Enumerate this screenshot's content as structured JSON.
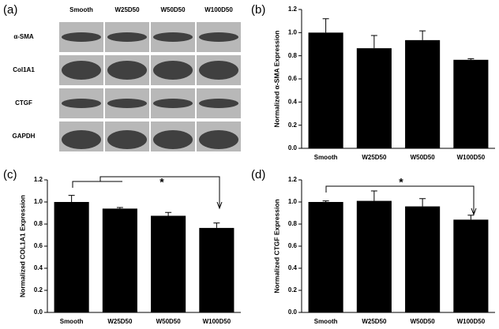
{
  "blot": {
    "label": "(a)",
    "columns": [
      "Smooth",
      "W25D50",
      "W50D50",
      "W100D50"
    ],
    "rows": [
      "α-SMA",
      "Col1A1",
      "CTGF",
      "GAPDH"
    ]
  },
  "chart_data": [
    {
      "type": "bar",
      "label": "(b)",
      "ylabel": "Normalized α-SMA Expression",
      "categories": [
        "Smooth",
        "W25D50",
        "W50D50",
        "W100D50"
      ],
      "values": [
        1.0,
        0.865,
        0.935,
        0.765
      ],
      "errors": [
        0.12,
        0.11,
        0.08,
        0.01
      ],
      "color": "#000000",
      "ylim": [
        0,
        1.2
      ],
      "yticks": [
        {
          "value": 0,
          "label": "0.0"
        },
        0.2,
        0.4,
        0.6,
        0.8,
        {
          "value": 1,
          "label": "1.0"
        },
        1.2
      ]
    },
    {
      "type": "bar",
      "label": "(c)",
      "ylabel": "Normalized COL1A1 Expression",
      "annotation": "*",
      "categories": [
        "Smooth",
        "W25D50",
        "W50D50",
        "W100D50"
      ],
      "values": [
        1.0,
        0.94,
        0.875,
        0.765
      ],
      "errors": [
        0.06,
        0.01,
        0.03,
        0.045
      ],
      "color": "#000000",
      "ylim": [
        0,
        1.2
      ],
      "yticks": [
        {
          "value": 0,
          "label": "0.0"
        },
        0.2,
        0.4,
        0.6,
        0.8,
        {
          "value": 1,
          "label": "1.0"
        },
        1.2
      ]
    },
    {
      "type": "bar",
      "label": "(d)",
      "ylabel": "Normalized CTGF Expression",
      "annotation": "*",
      "categories": [
        "Smooth",
        "W25D50",
        "W50D50",
        "W100D50"
      ],
      "values": [
        1.0,
        1.01,
        0.96,
        0.84
      ],
      "errors": [
        0.01,
        0.09,
        0.07,
        0.04
      ],
      "color": "#000000",
      "ylim": [
        0,
        1.2
      ],
      "yticks": [
        {
          "value": 0,
          "label": "0.0"
        },
        0.2,
        0.4,
        0.6,
        0.8,
        {
          "value": 1,
          "label": "1.0"
        },
        1.2
      ]
    }
  ]
}
